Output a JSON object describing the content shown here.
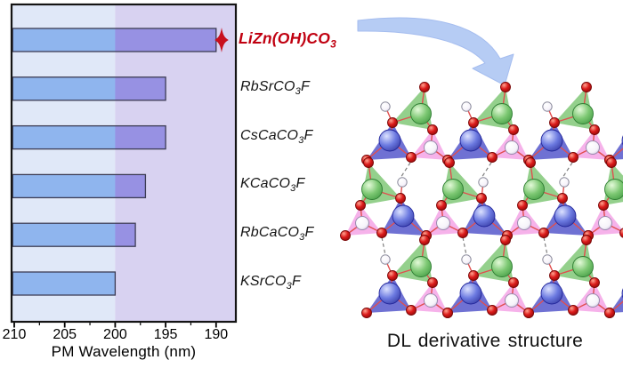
{
  "chart_data": {
    "type": "bar",
    "orientation": "horizontal",
    "title": "",
    "xlabel": "PM Wavelength (nm)",
    "ylabel": "",
    "x_axis_reversed": true,
    "x_ticks": [
      210,
      205,
      200,
      195,
      190
    ],
    "x_minor_ticks": [
      207.5,
      202.5,
      197.5,
      192.5
    ],
    "x_range": [
      210.3,
      187.8
    ],
    "categories": [
      "LiZn(OH)CO3",
      "RbSrCO3F",
      "CsCaCO3F",
      "KCaCO3F",
      "RbCaCO3F",
      "KSrCO3F"
    ],
    "values": [
      190,
      195,
      195,
      197,
      198,
      200
    ],
    "labels_rich": [
      {
        "pre": "LiZn(OH)CO",
        "sub": "3",
        "post": "",
        "highlight": true
      },
      {
        "pre": "RbSrCO",
        "sub": "3",
        "post": "F",
        "highlight": false
      },
      {
        "pre": "CsCaCO",
        "sub": "3",
        "post": "F",
        "highlight": false
      },
      {
        "pre": "KCaCO",
        "sub": "3",
        "post": "F",
        "highlight": false
      },
      {
        "pre": "RbCaCO",
        "sub": "3",
        "post": "F",
        "highlight": false
      },
      {
        "pre": "KSrCO",
        "sub": "3",
        "post": "F",
        "highlight": false
      }
    ],
    "shaded_region_boundary_nm": 200,
    "grid": false,
    "legend": "none",
    "highlight": {
      "category": "LiZn(OH)CO3",
      "marker": "red-four-pointed-star",
      "label_color": "#C00010"
    }
  },
  "structure": {
    "caption": "DL derivative structure",
    "rows": 3,
    "columns": 3,
    "components": {
      "green_triangle": "green-polyhedron",
      "blue_triangle": "blue-polyhedron",
      "pink_triangle": "pink-polyhedron",
      "red_sphere": "red-atom",
      "green_sphere": "green-atom",
      "blue_sphere": "blue-atom",
      "white_sphere": "hydrogen-atom",
      "dashed_line": "hydrogen-bond"
    }
  },
  "colors": {
    "bg_left": "#E0E8F8",
    "bg_right": "#D8D2F1",
    "bar_blue": "#8FB5EE",
    "bar_purple": "#9791E3",
    "bar_border": "#3C3C54",
    "plot_border": "#141414",
    "star_red": "#C8101E",
    "highlight_label": "#C00010",
    "arrow_blue": "#B6CCF4",
    "arrow_edge": "#A5BDEF",
    "triangle_green": "#85C97C",
    "triangle_blue": "#5F62CE",
    "triangle_pink": "#F5A5E6",
    "atom_red": "#DB1A1A",
    "atom_green": "#7DC873",
    "atom_blue": "#6B79E0",
    "atom_white": "#F6F3FA",
    "bond_red": "#E14E4E",
    "hbond_gray": "#808080"
  }
}
